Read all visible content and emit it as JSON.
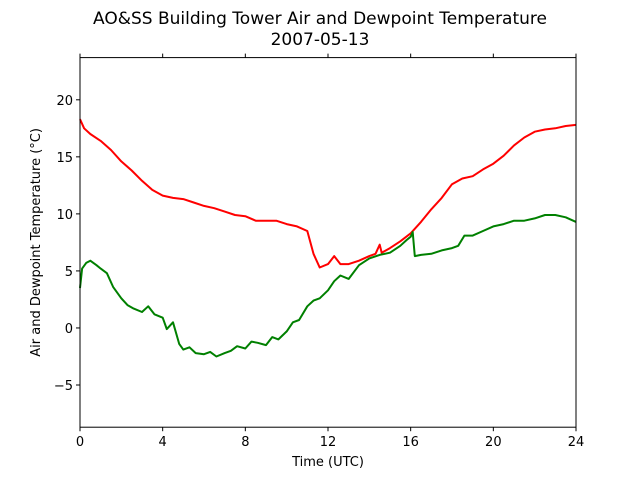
{
  "chart_data": {
    "type": "line",
    "title": "AO&SS Building Tower Air and Dewpoint Temperature",
    "subtitle": "2007-05-13",
    "xlabel": "Time (UTC)",
    "ylabel": "Air and Dewpoint Temperature (°C)",
    "xlim": [
      0,
      24
    ],
    "ylim": [
      -8.7,
      23.7
    ],
    "xticks": [
      0,
      4,
      8,
      12,
      16,
      20,
      24
    ],
    "yticks": [
      -5,
      0,
      5,
      10,
      15,
      20
    ],
    "grid": false,
    "legend": "none",
    "series": [
      {
        "color": "#ff0000",
        "x": [
          0,
          0.2,
          0.5,
          1,
          1.5,
          2,
          2.5,
          3,
          3.5,
          4,
          4.5,
          5,
          5.5,
          6,
          6.5,
          7,
          7.5,
          8,
          8.5,
          9,
          9.5,
          10,
          10.5,
          11,
          11.3,
          11.6,
          12,
          12.3,
          12.6,
          13,
          13.5,
          14,
          14.3,
          14.5,
          14.6,
          15,
          15.5,
          16,
          16.5,
          17,
          17.5,
          18,
          18.5,
          19,
          19.5,
          20,
          20.5,
          21,
          21.5,
          22,
          22.5,
          23,
          23.5,
          24
        ],
        "y": [
          18.3,
          17.5,
          17,
          16.4,
          15.6,
          14.6,
          13.8,
          12.9,
          12.1,
          11.6,
          11.4,
          11.3,
          11.0,
          10.7,
          10.5,
          10.2,
          9.9,
          9.8,
          9.4,
          9.4,
          9.4,
          9.1,
          8.9,
          8.5,
          6.5,
          5.3,
          5.6,
          6.3,
          5.6,
          5.6,
          5.9,
          6.3,
          6.5,
          7.3,
          6.6,
          7.0,
          7.6,
          8.3,
          9.3,
          10.4,
          11.4,
          12.6,
          13.1,
          13.3,
          13.9,
          14.4,
          15.1,
          16.0,
          16.7,
          17.2,
          17.4,
          17.5,
          17.7,
          17.8
        ]
      },
      {
        "color": "#008000",
        "x": [
          0,
          0.1,
          0.3,
          0.5,
          0.8,
          1,
          1.3,
          1.6,
          2,
          2.3,
          2.6,
          3,
          3.3,
          3.6,
          4,
          4.2,
          4.5,
          4.8,
          5,
          5.3,
          5.6,
          6,
          6.3,
          6.6,
          7,
          7.3,
          7.6,
          8,
          8.3,
          8.6,
          9,
          9.3,
          9.6,
          10,
          10.3,
          10.6,
          11,
          11.3,
          11.6,
          12,
          12.3,
          12.6,
          13,
          13.5,
          14,
          14.5,
          15,
          15.5,
          15.8,
          16,
          16.1,
          16.2,
          16.5,
          17,
          17.5,
          18,
          18.3,
          18.6,
          19,
          19.5,
          20,
          20.5,
          21,
          21.5,
          22,
          22.5,
          23,
          23.5,
          24
        ],
        "y": [
          3.5,
          5.2,
          5.7,
          5.9,
          5.5,
          5.2,
          4.8,
          3.6,
          2.6,
          2.0,
          1.7,
          1.4,
          1.9,
          1.2,
          0.9,
          -0.1,
          0.5,
          -1.4,
          -1.9,
          -1.7,
          -2.2,
          -2.3,
          -2.1,
          -2.5,
          -2.2,
          -2.0,
          -1.6,
          -1.8,
          -1.2,
          -1.3,
          -1.5,
          -0.8,
          -1.0,
          -0.3,
          0.5,
          0.7,
          1.9,
          2.4,
          2.6,
          3.3,
          4.1,
          4.6,
          4.3,
          5.5,
          6.1,
          6.4,
          6.6,
          7.2,
          7.7,
          8.0,
          8.4,
          6.3,
          6.4,
          6.5,
          6.8,
          7.0,
          7.2,
          8.1,
          8.1,
          8.5,
          8.9,
          9.1,
          9.4,
          9.4,
          9.6,
          9.9,
          9.9,
          9.7,
          9.3
        ]
      }
    ]
  }
}
